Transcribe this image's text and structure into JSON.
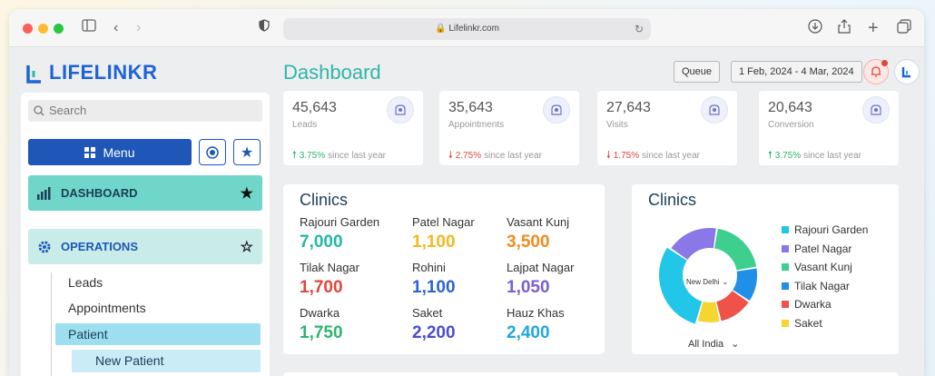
{
  "browser": {
    "url": "Lifelinkr.com"
  },
  "app": {
    "logo_text": "LIFELINKR",
    "page_title": "Dashboard",
    "queue_label": "Queue",
    "date_range": "1 Feb, 2024 - 4 Mar, 2024"
  },
  "sidebar": {
    "search_placeholder": "Search",
    "menu_label": "Menu",
    "dashboard_label": "DASHBOARD",
    "operations_label": "OPERATIONS",
    "sub_items": [
      "Leads",
      "Appointments"
    ],
    "active_item": "Patient",
    "active_sub_item": "New Patient"
  },
  "stats": [
    {
      "value": "45,643",
      "label": "Leads",
      "trend": "up",
      "change": "3.75%",
      "suffix": "since last year",
      "icon": "handshake-icon"
    },
    {
      "value": "35,643",
      "label": "Appointments",
      "trend": "down",
      "change": "2.75%",
      "suffix": "since last year",
      "icon": "people-icon"
    },
    {
      "value": "27,643",
      "label": "Visits",
      "trend": "down",
      "change": "1.75%",
      "suffix": "since last year",
      "icon": "hand-icon"
    },
    {
      "value": "20,643",
      "label": "Conversion",
      "trend": "up",
      "change": "3.75%",
      "suffix": "since last year",
      "icon": "handshake-icon"
    }
  ],
  "clinics": {
    "title": "Clinics",
    "items": [
      {
        "name": "Rajouri Garden",
        "value": "7,000",
        "color": "#20b9a6"
      },
      {
        "name": "Patel Nagar",
        "value": "1,100",
        "color": "#f5b820"
      },
      {
        "name": "Vasant Kunj",
        "value": "3,500",
        "color": "#f58a1f"
      },
      {
        "name": "Tilak Nagar",
        "value": "1,700",
        "color": "#e0463a"
      },
      {
        "name": "Rohini",
        "value": "1,100",
        "color": "#2a63d6"
      },
      {
        "name": "Lajpat Nagar",
        "value": "1,050",
        "color": "#7a5ed6"
      },
      {
        "name": "Dwarka",
        "value": "1,750",
        "color": "#2db56f"
      },
      {
        "name": "Saket",
        "value": "2,200",
        "color": "#4a4dd0"
      },
      {
        "name": "Hauz Khas",
        "value": "2,400",
        "color": "#1fa8e0"
      }
    ]
  },
  "donut": {
    "title": "Clinics",
    "center_label": "New Delhi",
    "footer_label": "All India",
    "legend": [
      {
        "name": "Rajouri Garden",
        "color": "#22c6e8"
      },
      {
        "name": "Patel Nagar",
        "color": "#8a78e8"
      },
      {
        "name": "Vasant Kunj",
        "color": "#3ecf8e"
      },
      {
        "name": "Tilak Nagar",
        "color": "#1f8fe8"
      },
      {
        "name": "Dwarka",
        "color": "#f0524a"
      },
      {
        "name": "Saket",
        "color": "#f5d630"
      }
    ],
    "slices": [
      {
        "name": "Vasant Kunj",
        "value": 20,
        "color": "#3ecf8e"
      },
      {
        "name": "Tilak Nagar",
        "value": 12,
        "color": "#1f8fe8"
      },
      {
        "name": "Dwarka",
        "value": 12,
        "color": "#f0524a"
      },
      {
        "name": "Saket",
        "value": 8,
        "color": "#f5d630"
      },
      {
        "name": "Rajouri Garden",
        "value": 30,
        "color": "#22c6e8"
      },
      {
        "name": "Patel Nagar",
        "value": 18,
        "color": "#8a78e8"
      }
    ]
  },
  "colors": {
    "accent": "#1e57b8",
    "teal": "#2fb6a5"
  }
}
